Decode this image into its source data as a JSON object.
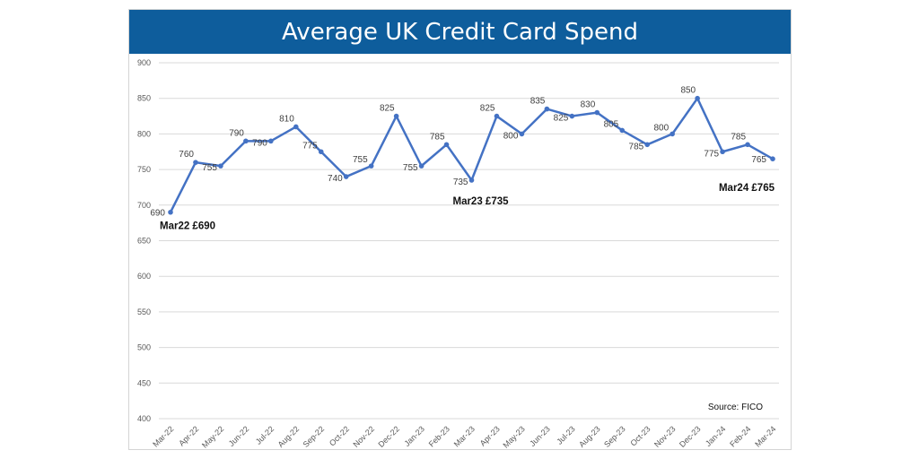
{
  "chart_data": {
    "type": "line",
    "title": "Average UK Credit Card Spend",
    "xlabel": "",
    "ylabel": "",
    "ylim": [
      400,
      900
    ],
    "yticks": [
      400,
      450,
      500,
      550,
      600,
      650,
      700,
      750,
      800,
      850,
      900
    ],
    "grid": true,
    "categories": [
      "Mar-22",
      "Apr-22",
      "May-22",
      "Jun-22",
      "Jul-22",
      "Aug-22",
      "Sep-22",
      "Oct-22",
      "Nov-22",
      "Dec-22",
      "Jan-23",
      "Feb-23",
      "Mar-23",
      "Apr-23",
      "May-23",
      "Jun-23",
      "Jul-23",
      "Aug-23",
      "Sep-23",
      "Oct-23",
      "Nov-23",
      "Dec-23",
      "Jan-24",
      "Feb-24",
      "Mar-24"
    ],
    "series": [
      {
        "values": [
          690,
          760,
          755,
          790,
          790,
          810,
          775,
          740,
          755,
          825,
          755,
          785,
          735,
          825,
          800,
          835,
          825,
          830,
          805,
          785,
          800,
          850,
          775,
          785,
          765
        ],
        "color": "#4472c4"
      }
    ],
    "annotations": [
      {
        "text": "Mar22 £690",
        "index": 0
      },
      {
        "text": "Mar23 £735",
        "index": 12
      },
      {
        "text": "Mar24 £765",
        "index": 24
      }
    ],
    "source": "Source: FICO"
  }
}
